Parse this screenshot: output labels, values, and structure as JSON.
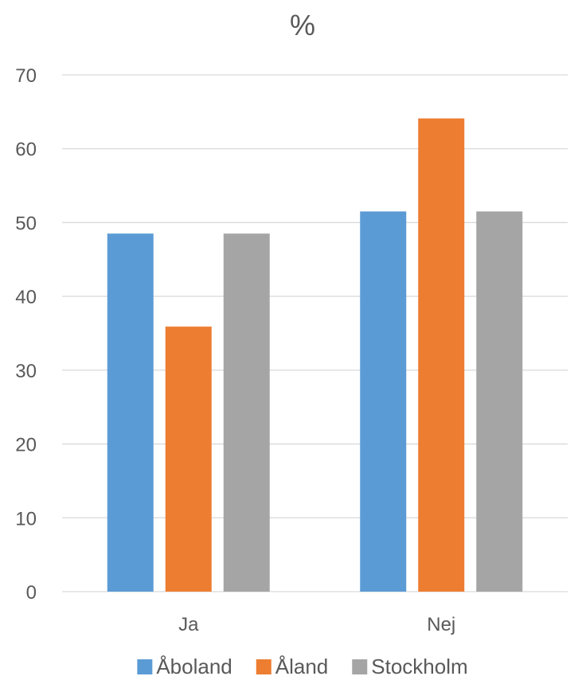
{
  "chart_data": {
    "type": "bar",
    "title": "%",
    "categories": [
      "Ja",
      "Nej"
    ],
    "series": [
      {
        "name": "Åboland",
        "color": "#5B9BD5",
        "values": [
          48.5,
          51.5
        ]
      },
      {
        "name": "Åland",
        "color": "#ED7D31",
        "values": [
          35.9,
          64.1
        ]
      },
      {
        "name": "Stockholm",
        "color": "#A5A5A5",
        "values": [
          48.5,
          51.5
        ]
      }
    ],
    "ylim": [
      0,
      70
    ],
    "yticks": [
      0,
      10,
      20,
      30,
      40,
      50,
      60,
      70
    ],
    "grid": true,
    "legend_position": "bottom",
    "gridline_color": "#D9D9D9",
    "text_color": "#595959"
  }
}
